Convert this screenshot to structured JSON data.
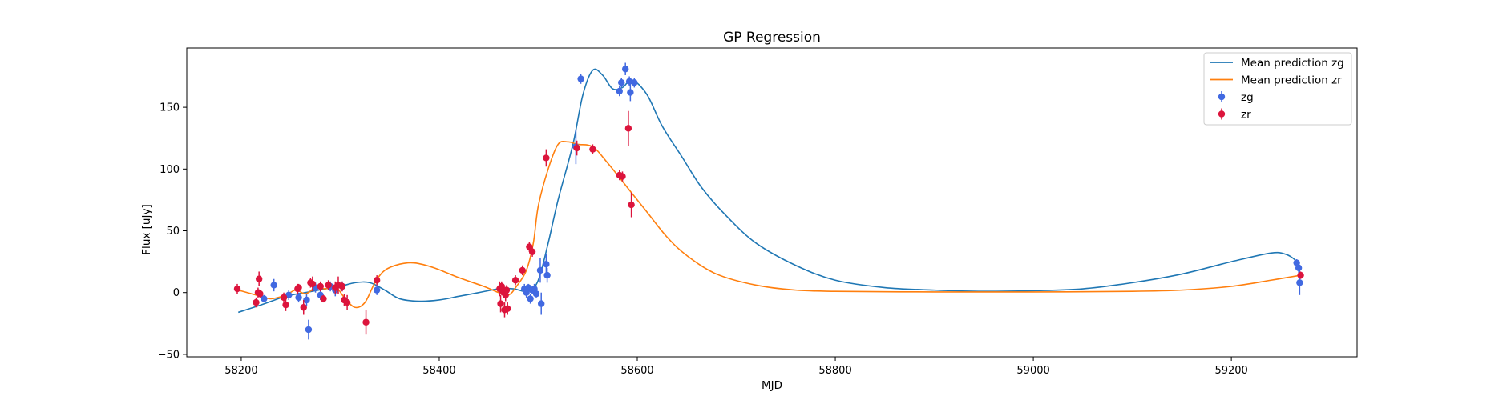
{
  "chart_data": {
    "type": "scatter",
    "title": "GP Regression",
    "xlabel": "MJD",
    "ylabel": "Flux [uJy]",
    "xlim": [
      58145,
      59327
    ],
    "ylim": [
      -52,
      198
    ],
    "xticks": [
      58200,
      58400,
      58600,
      58800,
      59000,
      59200
    ],
    "yticks": [
      -50,
      0,
      50,
      100,
      150
    ],
    "grid": false,
    "legend_position": "top-right",
    "colors": {
      "line_zg": "#1f77b4",
      "line_zr": "#ff7f0e",
      "points_zg": "#4169e1",
      "points_zr": "#dc143c"
    },
    "legend": [
      {
        "label": "Mean prediction zg",
        "kind": "line",
        "color": "#1f77b4"
      },
      {
        "label": "Mean prediction zr",
        "kind": "line",
        "color": "#ff7f0e"
      },
      {
        "label": "zg",
        "kind": "errorbar",
        "color": "#4169e1"
      },
      {
        "label": "zr",
        "kind": "errorbar",
        "color": "#dc143c"
      }
    ],
    "lines": [
      {
        "name": "Mean prediction zg",
        "color": "#1f77b4",
        "points": [
          [
            58197,
            -16
          ],
          [
            58220,
            -10
          ],
          [
            58245,
            -3
          ],
          [
            58265,
            0
          ],
          [
            58285,
            3
          ],
          [
            58300,
            5
          ],
          [
            58315,
            8
          ],
          [
            58330,
            8
          ],
          [
            58345,
            2
          ],
          [
            58360,
            -5
          ],
          [
            58380,
            -7
          ],
          [
            58400,
            -6
          ],
          [
            58420,
            -3
          ],
          [
            58440,
            0
          ],
          [
            58460,
            3
          ],
          [
            58475,
            3
          ],
          [
            58490,
            1
          ],
          [
            58500,
            10
          ],
          [
            58510,
            40
          ],
          [
            58520,
            75
          ],
          [
            58535,
            120
          ],
          [
            58545,
            160
          ],
          [
            58555,
            180
          ],
          [
            58565,
            176
          ],
          [
            58575,
            165
          ],
          [
            58585,
            166
          ],
          [
            58595,
            172
          ],
          [
            58610,
            160
          ],
          [
            58625,
            135
          ],
          [
            58645,
            110
          ],
          [
            58665,
            85
          ],
          [
            58690,
            62
          ],
          [
            58720,
            40
          ],
          [
            58760,
            22
          ],
          [
            58800,
            10
          ],
          [
            58850,
            4
          ],
          [
            58900,
            2
          ],
          [
            58950,
            1
          ],
          [
            59000,
            1.5
          ],
          [
            59050,
            3
          ],
          [
            59100,
            8
          ],
          [
            59150,
            15
          ],
          [
            59200,
            25
          ],
          [
            59240,
            32
          ],
          [
            59255,
            31
          ],
          [
            59265,
            26
          ],
          [
            59270,
            20
          ]
        ]
      },
      {
        "name": "Mean prediction zr",
        "color": "#ff7f0e",
        "points": [
          [
            58197,
            2
          ],
          [
            58215,
            -2
          ],
          [
            58230,
            -5
          ],
          [
            58245,
            -2
          ],
          [
            58255,
            2
          ],
          [
            58265,
            -1
          ],
          [
            58275,
            4
          ],
          [
            58285,
            3
          ],
          [
            58295,
            5
          ],
          [
            58305,
            -5
          ],
          [
            58315,
            -12
          ],
          [
            58325,
            -8
          ],
          [
            58335,
            8
          ],
          [
            58345,
            18
          ],
          [
            58360,
            23
          ],
          [
            58375,
            24
          ],
          [
            58395,
            20
          ],
          [
            58420,
            12
          ],
          [
            58445,
            5
          ],
          [
            58460,
            0
          ],
          [
            58470,
            -2
          ],
          [
            58478,
            5
          ],
          [
            58488,
            18
          ],
          [
            58495,
            40
          ],
          [
            58500,
            70
          ],
          [
            58510,
            100
          ],
          [
            58520,
            120
          ],
          [
            58530,
            122
          ],
          [
            58540,
            120
          ],
          [
            58555,
            118
          ],
          [
            58570,
            105
          ],
          [
            58590,
            85
          ],
          [
            58610,
            65
          ],
          [
            58630,
            45
          ],
          [
            58650,
            30
          ],
          [
            58680,
            15
          ],
          [
            58720,
            6
          ],
          [
            58760,
            2
          ],
          [
            58800,
            1
          ],
          [
            58900,
            0.5
          ],
          [
            59000,
            0.5
          ],
          [
            59100,
            1
          ],
          [
            59150,
            2
          ],
          [
            59200,
            5
          ],
          [
            59240,
            10
          ],
          [
            59270,
            14
          ]
        ]
      }
    ],
    "series": [
      {
        "name": "zg",
        "color": "#4169e1",
        "points": [
          {
            "x": 58223,
            "y": -5,
            "err": 3
          },
          {
            "x": 58233,
            "y": 6,
            "err": 5
          },
          {
            "x": 58248,
            "y": -2,
            "err": 4
          },
          {
            "x": 58258,
            "y": -4,
            "err": 4
          },
          {
            "x": 58266,
            "y": -6,
            "err": 5
          },
          {
            "x": 58268,
            "y": -30,
            "err": 8
          },
          {
            "x": 58275,
            "y": 4,
            "err": 4
          },
          {
            "x": 58280,
            "y": -2,
            "err": 4
          },
          {
            "x": 58290,
            "y": 5,
            "err": 4
          },
          {
            "x": 58295,
            "y": 2,
            "err": 5
          },
          {
            "x": 58302,
            "y": 5,
            "err": 4
          },
          {
            "x": 58337,
            "y": 2,
            "err": 4
          },
          {
            "x": 58486,
            "y": 3,
            "err": 4
          },
          {
            "x": 58488,
            "y": 0,
            "err": 4
          },
          {
            "x": 58490,
            "y": 4,
            "err": 3
          },
          {
            "x": 58492,
            "y": -5,
            "err": 4
          },
          {
            "x": 58494,
            "y": 2,
            "err": 3
          },
          {
            "x": 58496,
            "y": 3,
            "err": 4
          },
          {
            "x": 58498,
            "y": -1,
            "err": 3
          },
          {
            "x": 58502,
            "y": 18,
            "err": 10
          },
          {
            "x": 58503,
            "y": -9,
            "err": 9
          },
          {
            "x": 58508,
            "y": 23,
            "err": 8
          },
          {
            "x": 58509,
            "y": 14,
            "err": 6
          },
          {
            "x": 58538,
            "y": 118,
            "err": 14
          },
          {
            "x": 58543,
            "y": 173,
            "err": 4
          },
          {
            "x": 58582,
            "y": 163,
            "err": 4
          },
          {
            "x": 58584,
            "y": 170,
            "err": 4
          },
          {
            "x": 58588,
            "y": 181,
            "err": 5
          },
          {
            "x": 58592,
            "y": 171,
            "err": 4
          },
          {
            "x": 58593,
            "y": 162,
            "err": 7
          },
          {
            "x": 58597,
            "y": 170,
            "err": 4
          },
          {
            "x": 59266,
            "y": 24,
            "err": 3
          },
          {
            "x": 59268,
            "y": 20,
            "err": 4
          },
          {
            "x": 59269,
            "y": 8,
            "err": 10
          }
        ]
      },
      {
        "name": "zr",
        "color": "#dc143c",
        "points": [
          {
            "x": 58196,
            "y": 3,
            "err": 4
          },
          {
            "x": 58215,
            "y": -8,
            "err": 4
          },
          {
            "x": 58217,
            "y": 0,
            "err": 4
          },
          {
            "x": 58218,
            "y": 11,
            "err": 6
          },
          {
            "x": 58219,
            "y": -1,
            "err": 3
          },
          {
            "x": 58243,
            "y": -4,
            "err": 4
          },
          {
            "x": 58245,
            "y": -10,
            "err": 5
          },
          {
            "x": 58257,
            "y": 3,
            "err": 4
          },
          {
            "x": 58258,
            "y": 4,
            "err": 3
          },
          {
            "x": 58263,
            "y": -12,
            "err": 6
          },
          {
            "x": 58270,
            "y": 8,
            "err": 4
          },
          {
            "x": 58272,
            "y": 7,
            "err": 6
          },
          {
            "x": 58280,
            "y": 5,
            "err": 4
          },
          {
            "x": 58283,
            "y": -5,
            "err": 3
          },
          {
            "x": 58288,
            "y": 6,
            "err": 4
          },
          {
            "x": 58295,
            "y": 4,
            "err": 5
          },
          {
            "x": 58298,
            "y": 6,
            "err": 7
          },
          {
            "x": 58302,
            "y": 5,
            "err": 4
          },
          {
            "x": 58304,
            "y": -6,
            "err": 5
          },
          {
            "x": 58307,
            "y": -8,
            "err": 6
          },
          {
            "x": 58326,
            "y": -24,
            "err": 10
          },
          {
            "x": 58337,
            "y": 10,
            "err": 4
          },
          {
            "x": 58461,
            "y": 3,
            "err": 6
          },
          {
            "x": 58462,
            "y": -9,
            "err": 7
          },
          {
            "x": 58463,
            "y": 5,
            "err": 4
          },
          {
            "x": 58464,
            "y": 2,
            "err": 4
          },
          {
            "x": 58465,
            "y": 0,
            "err": 4
          },
          {
            "x": 58466,
            "y": -14,
            "err": 6
          },
          {
            "x": 58467,
            "y": -2,
            "err": 5
          },
          {
            "x": 58468,
            "y": 2,
            "err": 4
          },
          {
            "x": 58469,
            "y": -13,
            "err": 5
          },
          {
            "x": 58477,
            "y": 10,
            "err": 4
          },
          {
            "x": 58484,
            "y": 18,
            "err": 4
          },
          {
            "x": 58491,
            "y": 37,
            "err": 4
          },
          {
            "x": 58494,
            "y": 33,
            "err": 4
          },
          {
            "x": 58508,
            "y": 109,
            "err": 7
          },
          {
            "x": 58539,
            "y": 117,
            "err": 6
          },
          {
            "x": 58555,
            "y": 116,
            "err": 4
          },
          {
            "x": 58582,
            "y": 95,
            "err": 4
          },
          {
            "x": 58585,
            "y": 94,
            "err": 4
          },
          {
            "x": 58591,
            "y": 133,
            "err": 14
          },
          {
            "x": 58594,
            "y": 71,
            "err": 10
          },
          {
            "x": 59270,
            "y": 14,
            "err": 3
          }
        ]
      }
    ]
  }
}
